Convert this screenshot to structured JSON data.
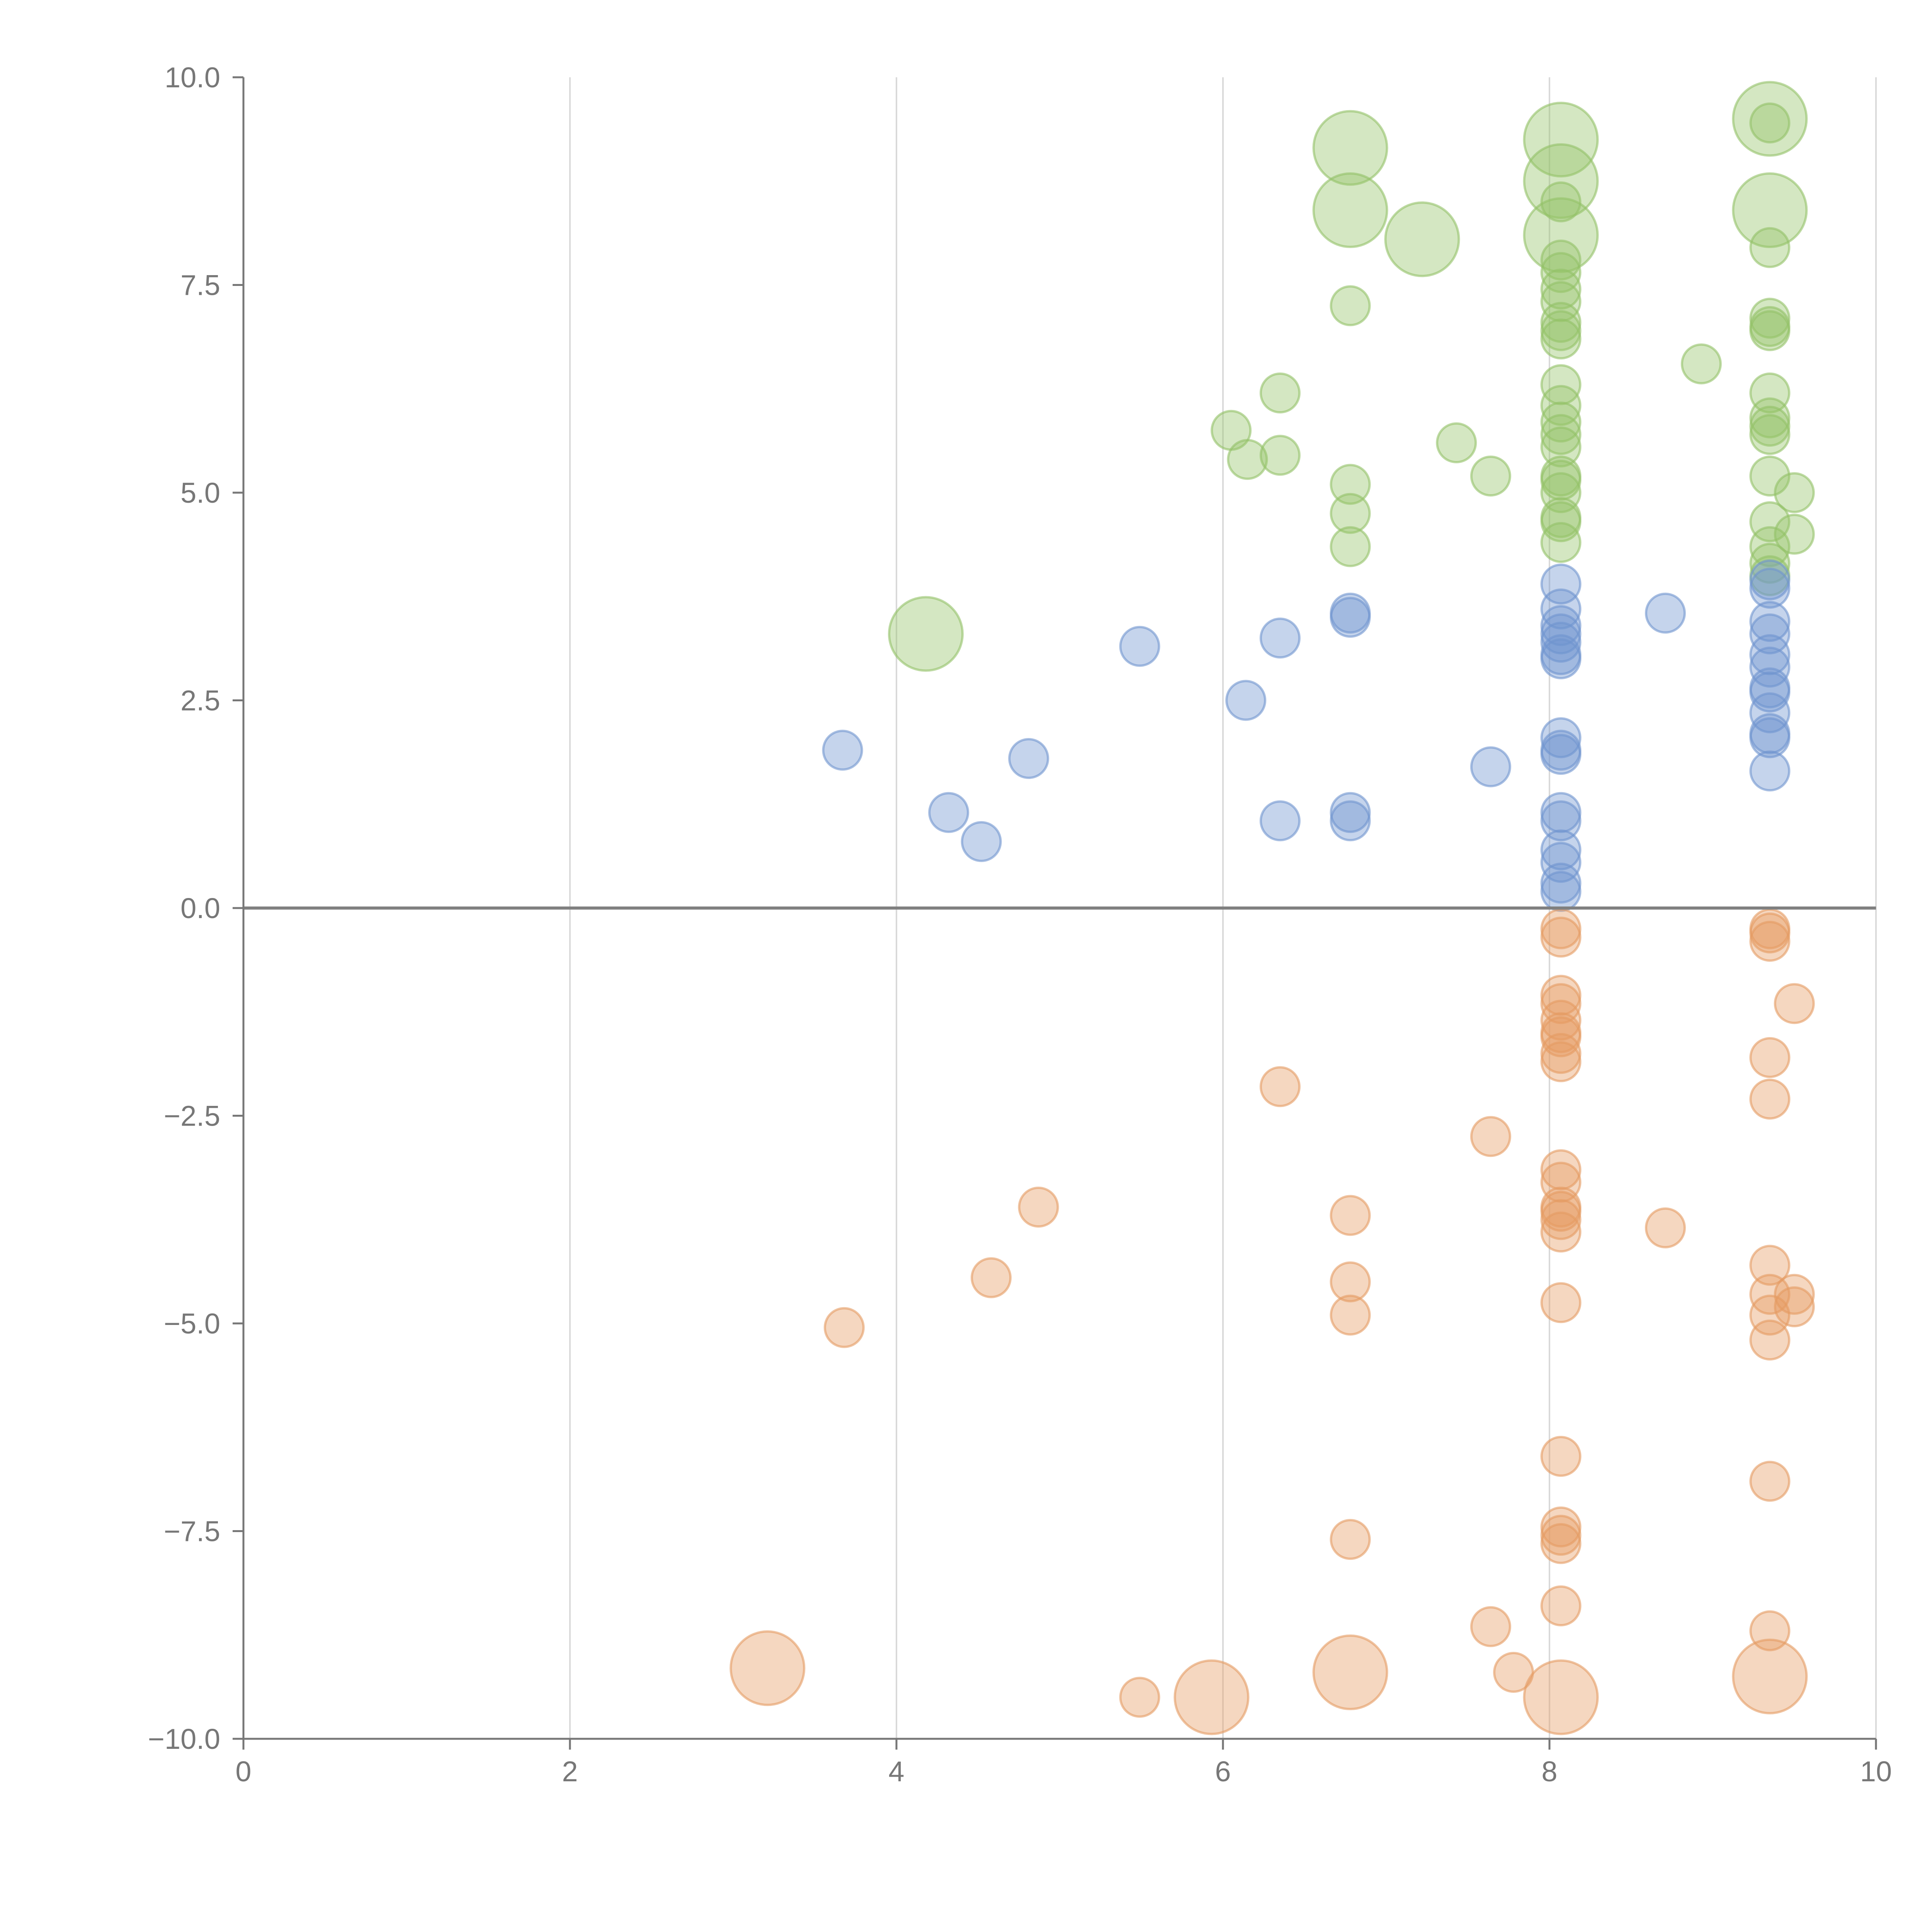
{
  "chart_data": {
    "type": "scatter",
    "title": "",
    "xlabel": "",
    "ylabel": "",
    "xlim": [
      0,
      10
    ],
    "ylim": [
      -10,
      10
    ],
    "x_ticks": [
      0,
      2,
      4,
      6,
      8,
      10
    ],
    "x_tick_labels": [
      "0",
      "2",
      "4",
      "6",
      "8",
      "10"
    ],
    "y_ticks": [
      10,
      7.5,
      5,
      2.5,
      0,
      -2.5,
      -5,
      -7.5,
      -10
    ],
    "y_tick_labels": [
      "10.0",
      "7.5",
      "5.0",
      "2.5",
      "0.0",
      "−2.5",
      "−5.0",
      "−7.5",
      "−10.0"
    ],
    "grid": "vertical",
    "legend": "none",
    "zero_line": 0,
    "colors": {
      "green": "#93c267",
      "blue": "#6f94cf",
      "orange": "#e59b62",
      "axis": "#777777",
      "grid": "#d9d9d9",
      "zero": "#808080"
    },
    "series": [
      {
        "color": "#93c267",
        "size_unit": "relative",
        "points": [
          {
            "x": 6.78,
            "y": 9.15,
            "s": 2
          },
          {
            "x": 6.78,
            "y": 8.4,
            "s": 2
          },
          {
            "x": 7.22,
            "y": 8.05,
            "s": 2
          },
          {
            "x": 6.78,
            "y": 7.25,
            "s": 1
          },
          {
            "x": 8.07,
            "y": 9.25,
            "s": 2
          },
          {
            "x": 8.07,
            "y": 8.75,
            "s": 2
          },
          {
            "x": 8.07,
            "y": 8.1,
            "s": 2
          },
          {
            "x": 8.07,
            "y": 8.5,
            "s": 1
          },
          {
            "x": 8.07,
            "y": 7.8,
            "s": 1
          },
          {
            "x": 8.07,
            "y": 7.65,
            "s": 1
          },
          {
            "x": 8.07,
            "y": 7.45,
            "s": 1
          },
          {
            "x": 8.07,
            "y": 7.3,
            "s": 1
          },
          {
            "x": 8.07,
            "y": 7.05,
            "s": 1
          },
          {
            "x": 8.07,
            "y": 6.95,
            "s": 1
          },
          {
            "x": 8.07,
            "y": 6.85,
            "s": 1
          },
          {
            "x": 8.07,
            "y": 6.3,
            "s": 1
          },
          {
            "x": 8.07,
            "y": 6.05,
            "s": 1
          },
          {
            "x": 8.07,
            "y": 5.85,
            "s": 1
          },
          {
            "x": 8.07,
            "y": 5.7,
            "s": 1
          },
          {
            "x": 8.07,
            "y": 5.55,
            "s": 1
          },
          {
            "x": 8.07,
            "y": 5.2,
            "s": 1
          },
          {
            "x": 8.07,
            "y": 5.15,
            "s": 1
          },
          {
            "x": 8.07,
            "y": 5.0,
            "s": 1
          },
          {
            "x": 8.07,
            "y": 4.7,
            "s": 1
          },
          {
            "x": 8.07,
            "y": 4.65,
            "s": 1
          },
          {
            "x": 8.07,
            "y": 4.4,
            "s": 1
          },
          {
            "x": 9.35,
            "y": 9.5,
            "s": 2
          },
          {
            "x": 9.35,
            "y": 9.45,
            "s": 1
          },
          {
            "x": 9.35,
            "y": 8.4,
            "s": 2
          },
          {
            "x": 9.35,
            "y": 7.95,
            "s": 1
          },
          {
            "x": 9.35,
            "y": 7.1,
            "s": 1
          },
          {
            "x": 9.35,
            "y": 7.0,
            "s": 1
          },
          {
            "x": 9.35,
            "y": 6.95,
            "s": 1
          },
          {
            "x": 9.35,
            "y": 6.2,
            "s": 1
          },
          {
            "x": 9.35,
            "y": 5.9,
            "s": 1
          },
          {
            "x": 9.35,
            "y": 5.8,
            "s": 1
          },
          {
            "x": 9.35,
            "y": 5.7,
            "s": 1
          },
          {
            "x": 9.35,
            "y": 5.2,
            "s": 1
          },
          {
            "x": 9.35,
            "y": 4.65,
            "s": 1
          },
          {
            "x": 9.35,
            "y": 4.35,
            "s": 1
          },
          {
            "x": 9.35,
            "y": 4.15,
            "s": 1
          },
          {
            "x": 9.35,
            "y": 4.0,
            "s": 1
          },
          {
            "x": 9.5,
            "y": 5.0,
            "s": 1
          },
          {
            "x": 9.5,
            "y": 4.5,
            "s": 1
          },
          {
            "x": 8.93,
            "y": 6.55,
            "s": 1
          },
          {
            "x": 6.05,
            "y": 5.75,
            "s": 1
          },
          {
            "x": 6.15,
            "y": 5.4,
            "s": 1
          },
          {
            "x": 6.35,
            "y": 6.2,
            "s": 1
          },
          {
            "x": 6.35,
            "y": 5.45,
            "s": 1
          },
          {
            "x": 6.78,
            "y": 5.1,
            "s": 1
          },
          {
            "x": 6.78,
            "y": 4.75,
            "s": 1
          },
          {
            "x": 6.78,
            "y": 4.35,
            "s": 1
          },
          {
            "x": 7.43,
            "y": 5.6,
            "s": 1
          },
          {
            "x": 7.64,
            "y": 5.2,
            "s": 1
          },
          {
            "x": 4.18,
            "y": 3.3,
            "s": 2
          }
        ]
      },
      {
        "color": "#6f94cf",
        "size_unit": "relative",
        "points": [
          {
            "x": 3.67,
            "y": 1.9,
            "s": 1
          },
          {
            "x": 4.32,
            "y": 1.15,
            "s": 1
          },
          {
            "x": 4.52,
            "y": 0.8,
            "s": 1
          },
          {
            "x": 4.81,
            "y": 1.8,
            "s": 1
          },
          {
            "x": 5.49,
            "y": 3.15,
            "s": 1
          },
          {
            "x": 6.14,
            "y": 2.5,
            "s": 1
          },
          {
            "x": 6.35,
            "y": 3.25,
            "s": 1
          },
          {
            "x": 6.35,
            "y": 1.05,
            "s": 1
          },
          {
            "x": 6.78,
            "y": 3.55,
            "s": 1
          },
          {
            "x": 6.78,
            "y": 3.5,
            "s": 1
          },
          {
            "x": 6.78,
            "y": 1.15,
            "s": 1
          },
          {
            "x": 6.78,
            "y": 1.05,
            "s": 1
          },
          {
            "x": 7.64,
            "y": 1.7,
            "s": 1
          },
          {
            "x": 8.71,
            "y": 3.55,
            "s": 1
          },
          {
            "x": 8.07,
            "y": 3.9,
            "s": 1
          },
          {
            "x": 8.07,
            "y": 3.6,
            "s": 1
          },
          {
            "x": 8.07,
            "y": 3.4,
            "s": 1
          },
          {
            "x": 8.07,
            "y": 3.3,
            "s": 1
          },
          {
            "x": 8.07,
            "y": 3.2,
            "s": 1
          },
          {
            "x": 8.07,
            "y": 3.05,
            "s": 1
          },
          {
            "x": 8.07,
            "y": 3.0,
            "s": 1
          },
          {
            "x": 8.07,
            "y": 2.05,
            "s": 1
          },
          {
            "x": 8.07,
            "y": 1.9,
            "s": 1
          },
          {
            "x": 8.07,
            "y": 1.85,
            "s": 1
          },
          {
            "x": 8.07,
            "y": 1.15,
            "s": 1
          },
          {
            "x": 8.07,
            "y": 1.05,
            "s": 1
          },
          {
            "x": 8.07,
            "y": 0.7,
            "s": 1
          },
          {
            "x": 8.07,
            "y": 0.55,
            "s": 1
          },
          {
            "x": 8.07,
            "y": 0.3,
            "s": 1
          },
          {
            "x": 8.07,
            "y": 0.2,
            "s": 1
          },
          {
            "x": 9.35,
            "y": 3.95,
            "s": 1
          },
          {
            "x": 9.35,
            "y": 3.85,
            "s": 1
          },
          {
            "x": 9.35,
            "y": 3.45,
            "s": 1
          },
          {
            "x": 9.35,
            "y": 3.3,
            "s": 1
          },
          {
            "x": 9.35,
            "y": 3.05,
            "s": 1
          },
          {
            "x": 9.35,
            "y": 2.9,
            "s": 1
          },
          {
            "x": 9.35,
            "y": 2.65,
            "s": 1
          },
          {
            "x": 9.35,
            "y": 2.6,
            "s": 1
          },
          {
            "x": 9.35,
            "y": 2.35,
            "s": 1
          },
          {
            "x": 9.35,
            "y": 2.1,
            "s": 1
          },
          {
            "x": 9.35,
            "y": 2.05,
            "s": 1
          },
          {
            "x": 9.35,
            "y": 1.65,
            "s": 1
          }
        ]
      },
      {
        "color": "#e59b62",
        "size_unit": "relative",
        "points": [
          {
            "x": 3.68,
            "y": -5.05,
            "s": 1
          },
          {
            "x": 4.58,
            "y": -4.45,
            "s": 1
          },
          {
            "x": 4.87,
            "y": -3.6,
            "s": 1
          },
          {
            "x": 6.35,
            "y": -2.15,
            "s": 1
          },
          {
            "x": 6.78,
            "y": -3.7,
            "s": 1
          },
          {
            "x": 6.78,
            "y": -4.5,
            "s": 1
          },
          {
            "x": 6.78,
            "y": -4.9,
            "s": 1
          },
          {
            "x": 6.78,
            "y": -7.6,
            "s": 1
          },
          {
            "x": 7.64,
            "y": -2.75,
            "s": 1
          },
          {
            "x": 7.64,
            "y": -8.65,
            "s": 1
          },
          {
            "x": 7.78,
            "y": -9.2,
            "s": 1
          },
          {
            "x": 8.71,
            "y": -3.85,
            "s": 1
          },
          {
            "x": 5.49,
            "y": -9.5,
            "s": 1
          },
          {
            "x": 3.21,
            "y": -9.15,
            "s": 2
          },
          {
            "x": 5.93,
            "y": -9.5,
            "s": 2
          },
          {
            "x": 6.78,
            "y": -9.2,
            "s": 2
          },
          {
            "x": 8.07,
            "y": -9.5,
            "s": 2
          },
          {
            "x": 9.35,
            "y": -9.25,
            "s": 2
          },
          {
            "x": 8.07,
            "y": -0.25,
            "s": 1
          },
          {
            "x": 8.07,
            "y": -0.35,
            "s": 1
          },
          {
            "x": 8.07,
            "y": -1.05,
            "s": 1
          },
          {
            "x": 8.07,
            "y": -1.15,
            "s": 1
          },
          {
            "x": 8.07,
            "y": -1.35,
            "s": 1
          },
          {
            "x": 8.07,
            "y": -1.5,
            "s": 1
          },
          {
            "x": 8.07,
            "y": -1.55,
            "s": 1
          },
          {
            "x": 8.07,
            "y": -1.75,
            "s": 1
          },
          {
            "x": 8.07,
            "y": -1.85,
            "s": 1
          },
          {
            "x": 8.07,
            "y": -3.15,
            "s": 1
          },
          {
            "x": 8.07,
            "y": -3.3,
            "s": 1
          },
          {
            "x": 8.07,
            "y": -3.6,
            "s": 1
          },
          {
            "x": 8.07,
            "y": -3.65,
            "s": 1
          },
          {
            "x": 8.07,
            "y": -3.75,
            "s": 1
          },
          {
            "x": 8.07,
            "y": -3.9,
            "s": 1
          },
          {
            "x": 8.07,
            "y": -4.75,
            "s": 1
          },
          {
            "x": 8.07,
            "y": -6.6,
            "s": 1
          },
          {
            "x": 8.07,
            "y": -7.45,
            "s": 1
          },
          {
            "x": 8.07,
            "y": -7.55,
            "s": 1
          },
          {
            "x": 8.07,
            "y": -7.65,
            "s": 1
          },
          {
            "x": 8.07,
            "y": -8.4,
            "s": 1
          },
          {
            "x": 9.35,
            "y": -0.25,
            "s": 1
          },
          {
            "x": 9.35,
            "y": -0.3,
            "s": 1
          },
          {
            "x": 9.35,
            "y": -0.4,
            "s": 1
          },
          {
            "x": 9.35,
            "y": -1.8,
            "s": 1
          },
          {
            "x": 9.35,
            "y": -2.3,
            "s": 1
          },
          {
            "x": 9.35,
            "y": -4.3,
            "s": 1
          },
          {
            "x": 9.35,
            "y": -4.65,
            "s": 1
          },
          {
            "x": 9.35,
            "y": -4.9,
            "s": 1
          },
          {
            "x": 9.35,
            "y": -5.2,
            "s": 1
          },
          {
            "x": 9.35,
            "y": -6.9,
            "s": 1
          },
          {
            "x": 9.35,
            "y": -8.7,
            "s": 1
          },
          {
            "x": 9.5,
            "y": -1.15,
            "s": 1
          },
          {
            "x": 9.5,
            "y": -4.65,
            "s": 1
          },
          {
            "x": 9.5,
            "y": -4.8,
            "s": 1
          }
        ]
      }
    ]
  }
}
